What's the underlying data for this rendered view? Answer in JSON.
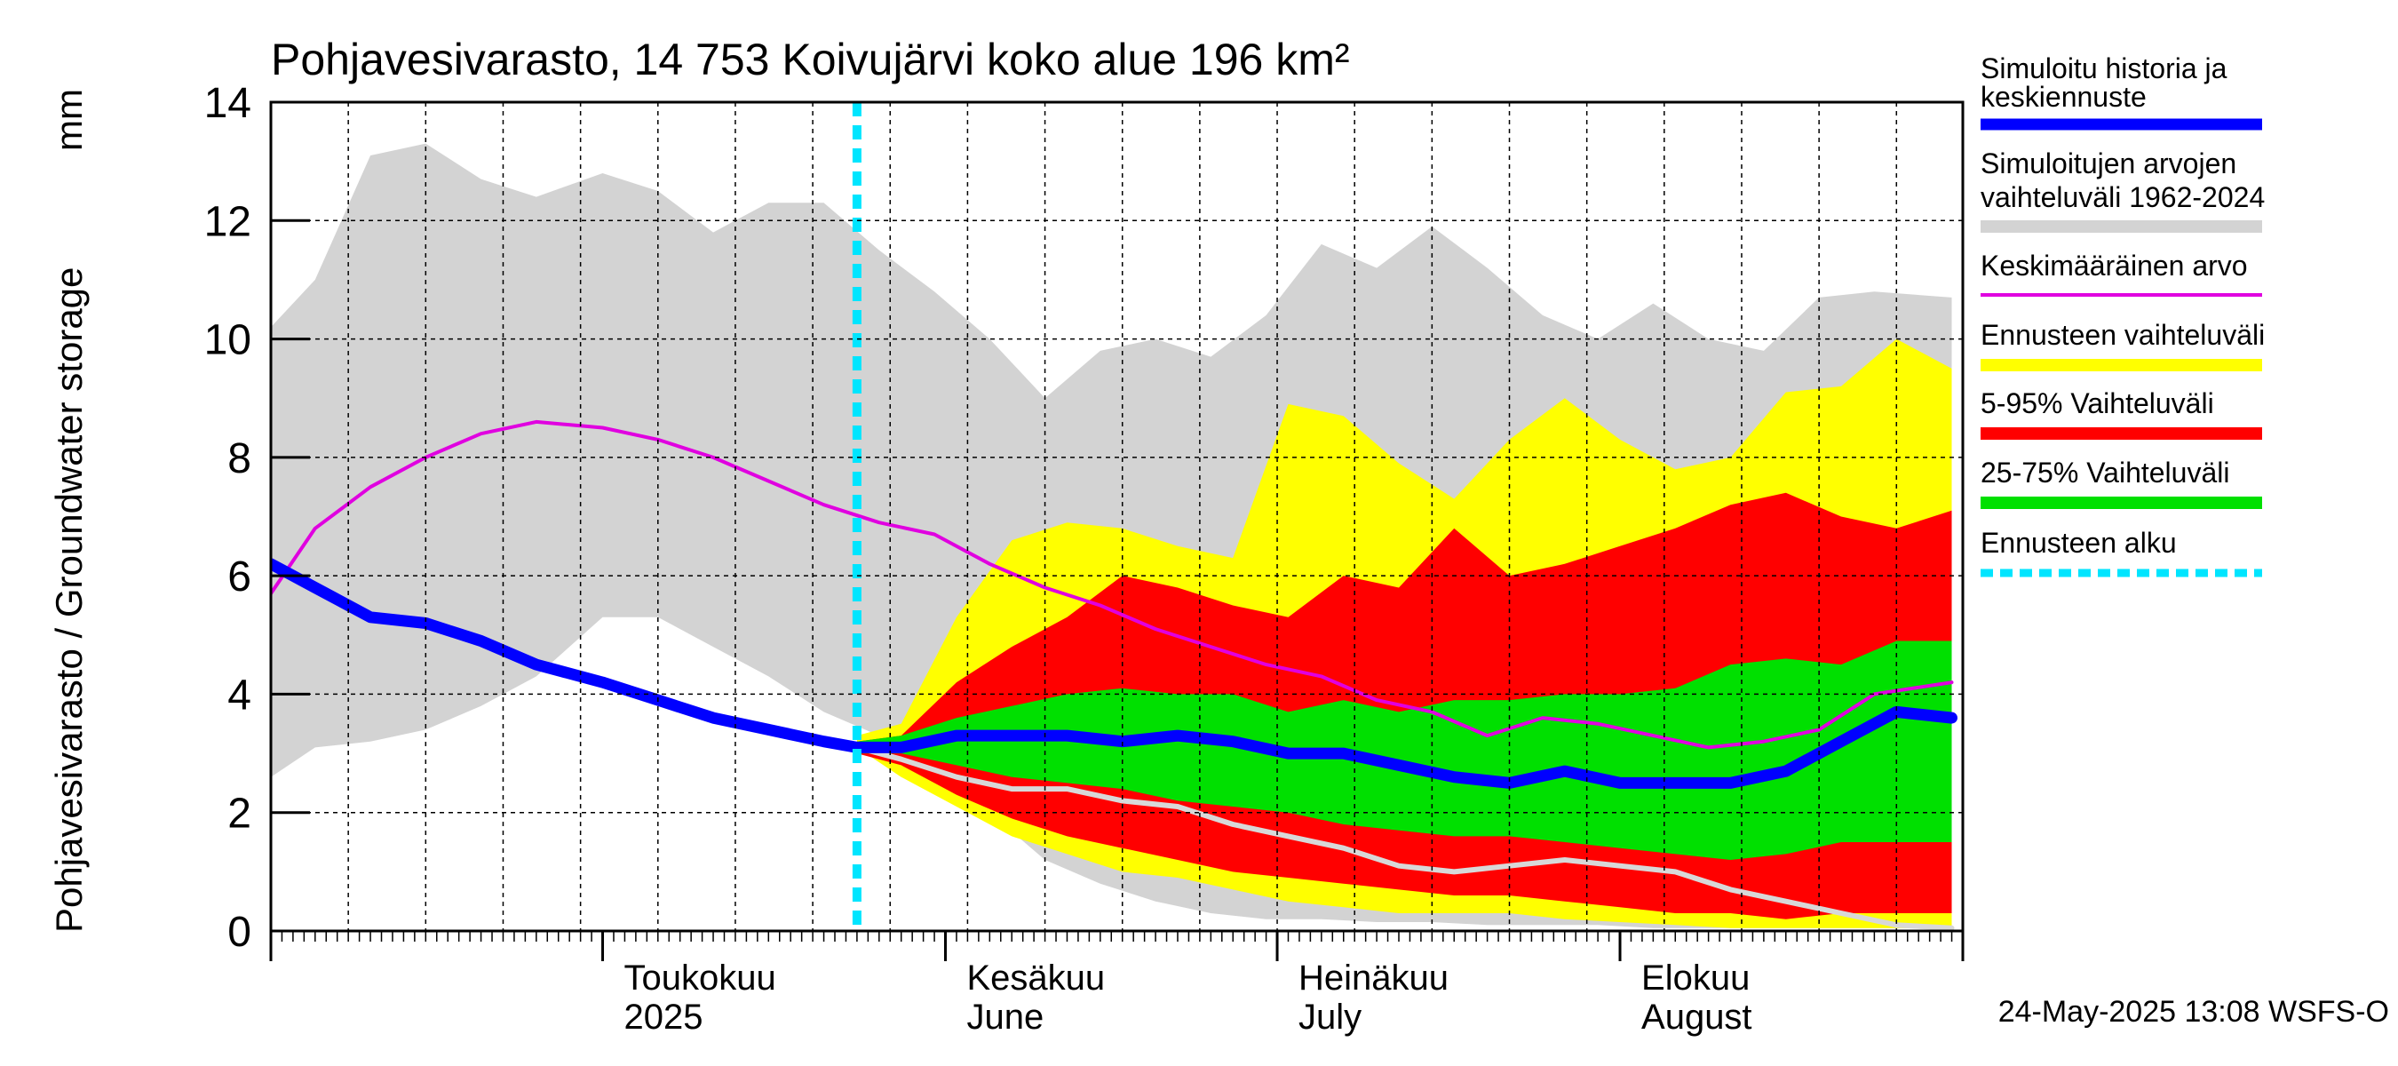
{
  "chart_data": {
    "type": "area",
    "title": "Pohjavesivarasto, 14 753 Koivujärvi koko alue 196 km²",
    "ylabel": "Pohjavesivarasto / Groundwater storage",
    "yunit": "mm",
    "ylim": [
      0,
      14
    ],
    "yticks": [
      0,
      2,
      4,
      6,
      8,
      10,
      12,
      14
    ],
    "xlim": [
      "2025-04-01",
      "2025-08-31"
    ],
    "month_labels": [
      {
        "line1": "Toukokuu",
        "line2": "2025",
        "date": "2025-05-01"
      },
      {
        "line1": "Kesäkuu",
        "line2": "June",
        "date": "2025-06-01"
      },
      {
        "line1": "Heinäkuu",
        "line2": "July",
        "date": "2025-07-01"
      },
      {
        "line1": "Elokuu",
        "line2": "August",
        "date": "2025-08-01"
      }
    ],
    "forecast_start": "2025-05-24",
    "timestamp": "24-May-2025 13:08 WSFS-O",
    "legend": [
      {
        "key": "history",
        "line1": "Simuloitu historia ja",
        "line2": "keskiennuste",
        "color": "#0000ff",
        "style": "thick"
      },
      {
        "key": "range",
        "line1": "Simuloitujen arvojen",
        "line2": "vaihteluväli 1962-2024",
        "color": "#d3d3d3",
        "style": "band"
      },
      {
        "key": "mean",
        "line1": "Keskimääräinen arvo",
        "line2": "",
        "color": "#e000e0",
        "style": "line"
      },
      {
        "key": "forecast_range",
        "line1": "Ennusteen vaihteluväli",
        "line2": "",
        "color": "#ffff00",
        "style": "band"
      },
      {
        "key": "p5_95",
        "line1": "5-95% Vaihteluväli",
        "line2": "",
        "color": "#ff0000",
        "style": "band"
      },
      {
        "key": "p25_75",
        "line1": "25-75% Vaihteluväli",
        "line2": "",
        "color": "#00e000",
        "style": "band"
      },
      {
        "key": "fstart",
        "line1": "Ennusteen alku",
        "line2": "",
        "color": "#00e5ff",
        "style": "dash"
      }
    ],
    "series": {
      "range_upper": {
        "x": [
          "2025-04-01",
          "2025-04-05",
          "2025-04-10",
          "2025-04-15",
          "2025-04-20",
          "2025-04-25",
          "2025-05-01",
          "2025-05-06",
          "2025-05-11",
          "2025-05-16",
          "2025-05-21",
          "2025-05-26",
          "2025-05-31",
          "2025-06-05",
          "2025-06-10",
          "2025-06-15",
          "2025-06-20",
          "2025-06-25",
          "2025-06-30",
          "2025-07-05",
          "2025-07-10",
          "2025-07-15",
          "2025-07-20",
          "2025-07-25",
          "2025-07-30",
          "2025-08-04",
          "2025-08-09",
          "2025-08-14",
          "2025-08-19",
          "2025-08-24",
          "2025-08-31"
        ],
        "y": [
          10.2,
          11.0,
          13.1,
          13.3,
          12.7,
          12.4,
          12.8,
          12.5,
          11.8,
          12.3,
          12.3,
          11.5,
          10.8,
          10.0,
          9.0,
          9.8,
          10.0,
          9.7,
          10.4,
          11.6,
          11.2,
          11.9,
          11.2,
          10.4,
          10.0,
          10.6,
          10.0,
          9.8,
          10.7,
          10.8,
          10.7
        ]
      },
      "range_lower": {
        "x": [
          "2025-04-01",
          "2025-04-05",
          "2025-04-10",
          "2025-04-15",
          "2025-04-20",
          "2025-04-25",
          "2025-05-01",
          "2025-05-06",
          "2025-05-11",
          "2025-05-16",
          "2025-05-21",
          "2025-05-26",
          "2025-05-31",
          "2025-06-05",
          "2025-06-10",
          "2025-06-15",
          "2025-06-20",
          "2025-06-25",
          "2025-06-30",
          "2025-07-05",
          "2025-07-10",
          "2025-07-15",
          "2025-07-20",
          "2025-07-25",
          "2025-07-30",
          "2025-08-04",
          "2025-08-09",
          "2025-08-14",
          "2025-08-19",
          "2025-08-24",
          "2025-08-31"
        ],
        "y": [
          2.6,
          3.1,
          3.2,
          3.4,
          3.8,
          4.3,
          5.3,
          5.3,
          4.8,
          4.3,
          3.7,
          3.3,
          2.8,
          2.0,
          1.2,
          0.8,
          0.5,
          0.3,
          0.2,
          0.2,
          0.15,
          0.15,
          0.1,
          0.1,
          0.1,
          0.05,
          0.05,
          0.05,
          0.05,
          0.05,
          0.05
        ]
      },
      "mean": {
        "x": [
          "2025-04-01",
          "2025-04-05",
          "2025-04-10",
          "2025-04-15",
          "2025-04-20",
          "2025-04-25",
          "2025-05-01",
          "2025-05-06",
          "2025-05-11",
          "2025-05-16",
          "2025-05-21",
          "2025-05-26",
          "2025-05-31",
          "2025-06-05",
          "2025-06-10",
          "2025-06-15",
          "2025-06-20",
          "2025-06-25",
          "2025-06-30",
          "2025-07-05",
          "2025-07-10",
          "2025-07-15",
          "2025-07-20",
          "2025-07-25",
          "2025-07-30",
          "2025-08-04",
          "2025-08-09",
          "2025-08-14",
          "2025-08-19",
          "2025-08-24",
          "2025-08-31"
        ],
        "y": [
          5.7,
          6.8,
          7.5,
          8.0,
          8.4,
          8.6,
          8.5,
          8.3,
          8.0,
          7.6,
          7.2,
          6.9,
          6.7,
          6.2,
          5.8,
          5.5,
          5.1,
          4.8,
          4.5,
          4.3,
          3.9,
          3.7,
          3.3,
          3.6,
          3.5,
          3.3,
          3.1,
          3.2,
          3.4,
          4.0,
          4.2
        ]
      },
      "history_forecast": {
        "x": [
          "2025-04-01",
          "2025-04-05",
          "2025-04-10",
          "2025-04-15",
          "2025-04-20",
          "2025-04-25",
          "2025-05-01",
          "2025-05-06",
          "2025-05-11",
          "2025-05-16",
          "2025-05-21",
          "2025-05-24",
          "2025-05-28",
          "2025-06-02",
          "2025-06-07",
          "2025-06-12",
          "2025-06-17",
          "2025-06-22",
          "2025-06-27",
          "2025-07-02",
          "2025-07-07",
          "2025-07-12",
          "2025-07-17",
          "2025-07-22",
          "2025-07-27",
          "2025-08-01",
          "2025-08-06",
          "2025-08-11",
          "2025-08-16",
          "2025-08-21",
          "2025-08-26",
          "2025-08-31"
        ],
        "y": [
          6.2,
          5.8,
          5.3,
          5.2,
          4.9,
          4.5,
          4.2,
          3.9,
          3.6,
          3.4,
          3.2,
          3.1,
          3.1,
          3.3,
          3.3,
          3.3,
          3.2,
          3.3,
          3.2,
          3.0,
          3.0,
          2.8,
          2.6,
          2.5,
          2.7,
          2.5,
          2.5,
          2.5,
          2.7,
          3.2,
          3.7,
          3.6
        ]
      },
      "forecast_x": [
        "2025-05-24",
        "2025-05-28",
        "2025-06-02",
        "2025-06-07",
        "2025-06-12",
        "2025-06-17",
        "2025-06-22",
        "2025-06-27",
        "2025-07-02",
        "2025-07-07",
        "2025-07-12",
        "2025-07-17",
        "2025-07-22",
        "2025-07-27",
        "2025-08-01",
        "2025-08-06",
        "2025-08-11",
        "2025-08-16",
        "2025-08-21",
        "2025-08-26",
        "2025-08-31"
      ],
      "forecast_max": [
        3.3,
        3.5,
        5.3,
        6.6,
        6.9,
        6.8,
        6.5,
        6.3,
        8.9,
        8.7,
        7.9,
        7.3,
        8.3,
        9.0,
        8.3,
        7.8,
        8.0,
        9.1,
        9.2,
        10.0,
        9.5
      ],
      "forecast_min": [
        3.1,
        2.6,
        2.1,
        1.6,
        1.3,
        1.0,
        0.9,
        0.7,
        0.5,
        0.4,
        0.3,
        0.3,
        0.3,
        0.2,
        0.15,
        0.1,
        0.05,
        0.05,
        0.05,
        0.05,
        0.05
      ],
      "p95": [
        3.2,
        3.3,
        4.2,
        4.8,
        5.3,
        6.0,
        5.8,
        5.5,
        5.3,
        6.0,
        5.8,
        6.8,
        6.0,
        6.2,
        6.5,
        6.8,
        7.2,
        7.4,
        7.0,
        6.8,
        7.1
      ],
      "p5": [
        3.0,
        2.8,
        2.3,
        1.9,
        1.6,
        1.4,
        1.2,
        1.0,
        0.9,
        0.8,
        0.7,
        0.6,
        0.6,
        0.5,
        0.4,
        0.3,
        0.3,
        0.2,
        0.3,
        0.3,
        0.3
      ],
      "p75": [
        3.2,
        3.3,
        3.6,
        3.8,
        4.0,
        4.1,
        4.0,
        4.0,
        3.7,
        3.9,
        3.7,
        3.9,
        3.9,
        4.0,
        4.0,
        4.1,
        4.5,
        4.6,
        4.5,
        4.9,
        4.9
      ],
      "p25": [
        3.0,
        3.0,
        2.8,
        2.6,
        2.5,
        2.4,
        2.2,
        2.1,
        2.0,
        1.8,
        1.7,
        1.6,
        1.6,
        1.5,
        1.4,
        1.3,
        1.2,
        1.3,
        1.5,
        1.5,
        1.5
      ],
      "median_light": [
        3.1,
        2.9,
        2.6,
        2.4,
        2.4,
        2.2,
        2.1,
        1.8,
        1.6,
        1.4,
        1.1,
        1.0,
        1.1,
        1.2,
        1.1,
        1.0,
        0.7,
        0.5,
        0.3,
        0.1,
        0.05
      ]
    }
  }
}
